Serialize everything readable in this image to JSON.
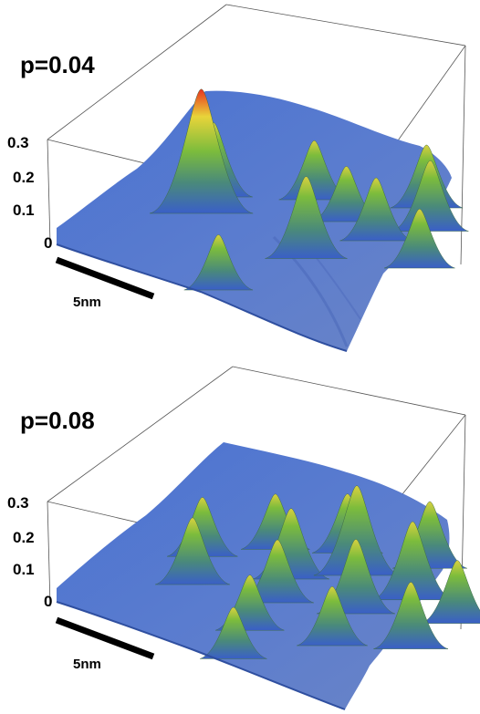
{
  "chart_data": [
    {
      "type": "surface3d",
      "title": "p=0.04",
      "z_ticks": [
        "0.3",
        "0.2",
        "0.1",
        "0"
      ],
      "zlim": [
        0,
        0.3
      ],
      "scale_bar_label": "5nm",
      "colormap": [
        "#3a5fc8",
        "#4a8a7a",
        "#7cbc3c",
        "#e8d43a",
        "#e8321e"
      ],
      "peaks": [
        {
          "u": 0.2,
          "v": 0.22,
          "height": 0.31
        },
        {
          "u": 0.28,
          "v": 0.1,
          "height": 0.18
        },
        {
          "u": 0.05,
          "v": 0.78,
          "height": 0.13
        },
        {
          "u": 0.4,
          "v": 0.55,
          "height": 0.2
        },
        {
          "u": 0.58,
          "v": 0.12,
          "height": 0.14
        },
        {
          "u": 0.62,
          "v": 0.28,
          "height": 0.13
        },
        {
          "u": 0.66,
          "v": 0.42,
          "height": 0.15
        },
        {
          "u": 0.72,
          "v": 0.62,
          "height": 0.14
        },
        {
          "u": 0.85,
          "v": 0.35,
          "height": 0.17
        },
        {
          "u": 0.9,
          "v": 0.18,
          "height": 0.15
        }
      ]
    },
    {
      "type": "surface3d",
      "title": "p=0.08",
      "z_ticks": [
        "0.3",
        "0.2",
        "0.1",
        "0"
      ],
      "zlim": [
        0,
        0.3
      ],
      "scale_bar_label": "5nm",
      "colormap": [
        "#3a5fc8",
        "#4a8a7a",
        "#7cbc3c",
        "#e8d43a",
        "#e8321e"
      ],
      "peaks": [
        {
          "u": 0.15,
          "v": 0.3,
          "height": 0.16
        },
        {
          "u": 0.25,
          "v": 0.12,
          "height": 0.14
        },
        {
          "u": 0.08,
          "v": 0.8,
          "height": 0.12
        },
        {
          "u": 0.2,
          "v": 0.62,
          "height": 0.13
        },
        {
          "u": 0.35,
          "v": 0.45,
          "height": 0.15
        },
        {
          "u": 0.45,
          "v": 0.3,
          "height": 0.17
        },
        {
          "u": 0.48,
          "v": 0.1,
          "height": 0.13
        },
        {
          "u": 0.55,
          "v": 0.55,
          "height": 0.18
        },
        {
          "u": 0.65,
          "v": 0.3,
          "height": 0.22
        },
        {
          "u": 0.68,
          "v": 0.15,
          "height": 0.14
        },
        {
          "u": 0.75,
          "v": 0.48,
          "height": 0.19
        },
        {
          "u": 0.82,
          "v": 0.65,
          "height": 0.15
        },
        {
          "u": 0.88,
          "v": 0.28,
          "height": 0.16
        },
        {
          "u": 0.95,
          "v": 0.85,
          "height": 0.17
        },
        {
          "u": 0.4,
          "v": 0.75,
          "height": 0.14
        },
        {
          "u": 0.62,
          "v": 0.8,
          "height": 0.16
        }
      ]
    }
  ]
}
